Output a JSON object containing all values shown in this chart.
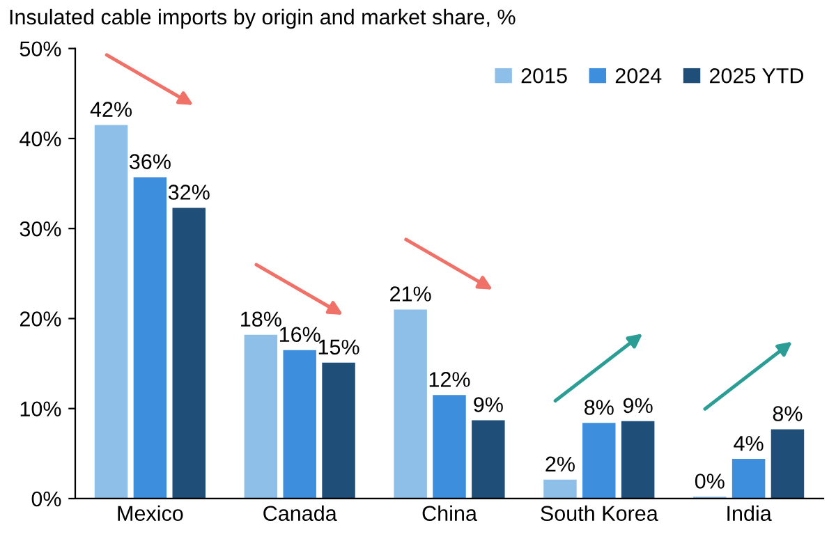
{
  "chart_data": {
    "type": "bar",
    "title": "Insulated cable imports by origin and market share, %",
    "categories": [
      "Mexico",
      "Canada",
      "China",
      "South Korea",
      "India"
    ],
    "series": [
      {
        "name": "2015",
        "color": "#8dbfe8",
        "values": [
          41.5,
          18.2,
          21.0,
          2.1,
          0.2
        ],
        "value_labels": [
          "42%",
          "18%",
          "21%",
          "2%",
          "0%"
        ]
      },
      {
        "name": "2024",
        "color": "#3e8ede",
        "values": [
          35.7,
          16.5,
          11.5,
          8.4,
          4.4
        ],
        "value_labels": [
          "36%",
          "16%",
          "12%",
          "8%",
          "4%"
        ]
      },
      {
        "name": "2025 YTD",
        "color": "#1f4e79",
        "values": [
          32.3,
          15.1,
          8.7,
          8.6,
          7.7
        ],
        "value_labels": [
          "32%",
          "15%",
          "9%",
          "9%",
          "8%"
        ]
      }
    ],
    "ylim": [
      0,
      50
    ],
    "yticks": [
      {
        "value": 0,
        "label": "0%"
      },
      {
        "value": 10,
        "label": "10%"
      },
      {
        "value": 20,
        "label": "20%"
      },
      {
        "value": 30,
        "label": "30%"
      },
      {
        "value": 40,
        "label": "40%"
      },
      {
        "value": 50,
        "label": "50%"
      }
    ],
    "legend": "top right",
    "grid": false
  }
}
